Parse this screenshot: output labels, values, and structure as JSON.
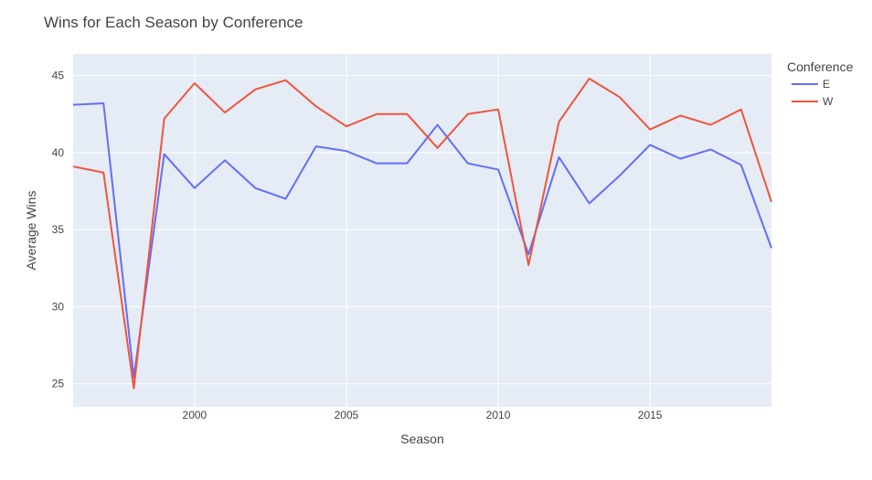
{
  "chart_data": {
    "type": "line",
    "title": "Wins for Each Season by Conference",
    "xlabel": "Season",
    "ylabel": "Average Wins",
    "xlim": [
      1996,
      2019
    ],
    "ylim": [
      23.5,
      46.4
    ],
    "xticks": [
      2000,
      2005,
      2010,
      2015
    ],
    "yticks": [
      25,
      30,
      35,
      40,
      45
    ],
    "grid": true,
    "legend_title": "Conference",
    "legend_position": "top-right",
    "x": [
      1996,
      1997,
      1998,
      1999,
      2000,
      2001,
      2002,
      2003,
      2004,
      2005,
      2006,
      2007,
      2008,
      2009,
      2010,
      2011,
      2012,
      2013,
      2014,
      2015,
      2016,
      2017,
      2018,
      2019
    ],
    "series": [
      {
        "name": "E",
        "color": "#636efa",
        "values": [
          43.1,
          43.2,
          25.4,
          39.9,
          37.7,
          39.5,
          37.7,
          37.0,
          40.4,
          40.1,
          39.3,
          39.3,
          41.8,
          39.3,
          38.9,
          33.4,
          39.7,
          36.7,
          38.5,
          40.5,
          39.6,
          40.2,
          39.2,
          33.8
        ]
      },
      {
        "name": "W",
        "color": "#ef553b",
        "values": [
          39.1,
          38.7,
          24.7,
          42.2,
          44.5,
          42.6,
          44.1,
          44.7,
          43.0,
          41.7,
          42.5,
          42.5,
          40.3,
          42.5,
          42.8,
          32.7,
          42.0,
          44.8,
          43.6,
          41.5,
          42.4,
          41.8,
          42.8,
          36.8
        ]
      }
    ]
  }
}
